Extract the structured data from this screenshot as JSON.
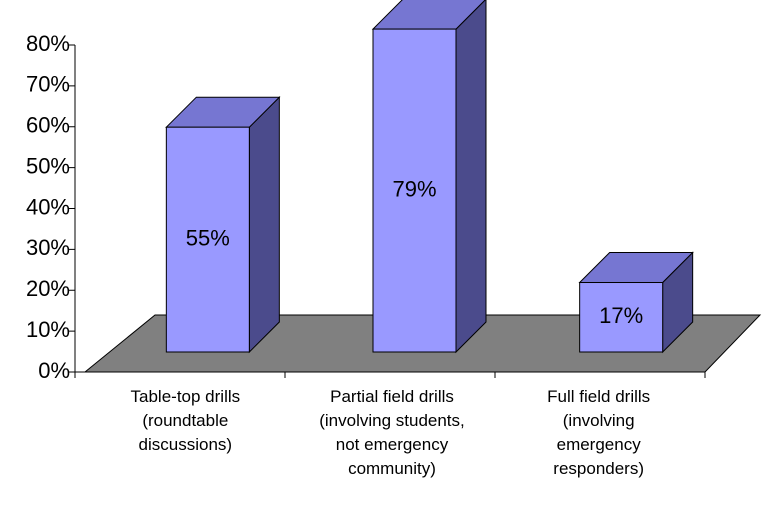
{
  "chart_data": {
    "type": "bar3d",
    "categories": [
      [
        "Table-top drills",
        "(roundtable",
        "discussions)"
      ],
      [
        "Partial field drills",
        "(involving students,",
        "not emergency",
        "community)"
      ],
      [
        "Full field drills",
        "(involving",
        "emergency",
        "responders)"
      ]
    ],
    "values": [
      55,
      79,
      17
    ],
    "value_labels": [
      "55%",
      "79%",
      "17%"
    ],
    "color": "#9999ff",
    "ylim": [
      0,
      80
    ],
    "yticks": [
      {
        "value": 0,
        "label": "0%"
      },
      {
        "value": 10,
        "label": "10%"
      },
      {
        "value": 20,
        "label": "20%"
      },
      {
        "value": 30,
        "label": "30%"
      },
      {
        "value": 40,
        "label": "40%"
      },
      {
        "value": 50,
        "label": "50%"
      },
      {
        "value": 60,
        "label": "60%"
      },
      {
        "value": 70,
        "label": "70%"
      },
      {
        "value": 80,
        "label": "80%"
      }
    ]
  }
}
